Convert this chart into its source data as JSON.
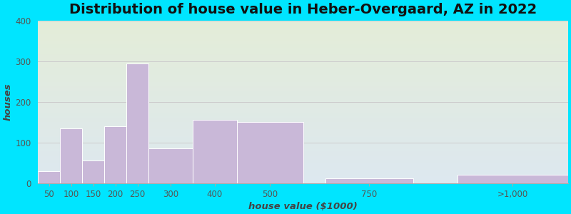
{
  "title": "Distribution of house value in Heber-Overgaard, AZ in 2022",
  "xlabel": "house value ($1000)",
  "ylabel": "houses",
  "bar_labels": [
    "50",
    "100",
    "150",
    "200",
    "250",
    "300",
    "400",
    "500",
    "750",
    ">1,000"
  ],
  "bar_values": [
    30,
    135,
    55,
    140,
    295,
    85,
    155,
    150,
    12,
    20
  ],
  "bar_centers": [
    0.5,
    1.5,
    2.5,
    3.5,
    4.5,
    6.0,
    8.0,
    10.5,
    15.0,
    21.5
  ],
  "bar_widths": [
    1,
    1,
    1,
    1,
    1,
    2,
    2,
    3,
    4,
    5
  ],
  "xlim": [
    0,
    24
  ],
  "bar_color": "#c9b8d8",
  "bar_edgecolor": "#ffffff",
  "background_outer": "#00e5ff",
  "background_inner_top": "#e4edd8",
  "background_inner_bottom": "#dde8f0",
  "ylim": [
    0,
    400
  ],
  "yticks": [
    0,
    100,
    200,
    300,
    400
  ],
  "title_fontsize": 14,
  "label_fontsize": 9.5,
  "tick_fontsize": 8.5
}
